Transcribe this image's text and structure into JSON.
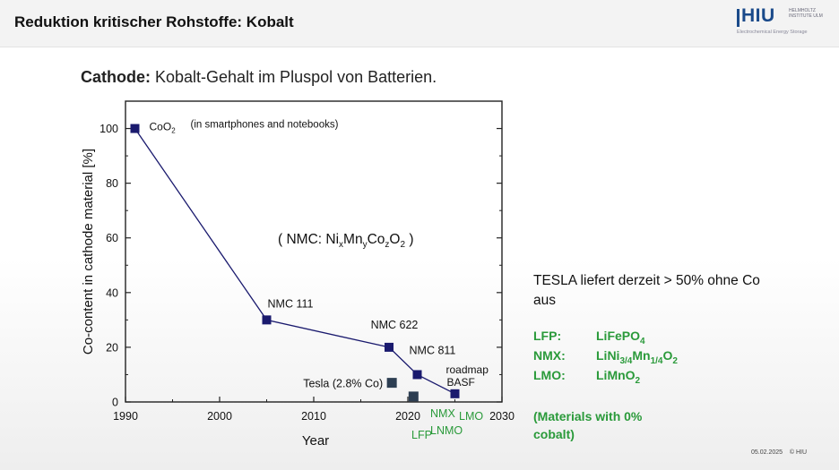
{
  "header": {
    "title": "Reduktion kritischer Rohstoffe: Kobalt",
    "logo": {
      "text": "HIU",
      "institute": "HELMHOLTZ INSTITUTE ULM",
      "subtitle": "Electrochemical Energy Storage"
    }
  },
  "subtitle": {
    "bold": "Cathode:",
    "text": " Kobalt-Gehalt im Pluspol von Batterien."
  },
  "chart_data": {
    "type": "line",
    "xlabel": "Year",
    "ylabel": "Co-content in cathode material [%]",
    "xlim": [
      1990,
      2030
    ],
    "ylim": [
      0,
      110
    ],
    "xticks": [
      1990,
      2000,
      2010,
      2020,
      2030
    ],
    "yticks": [
      0,
      20,
      40,
      60,
      80,
      100
    ],
    "grid": false,
    "inner_label": "( NMC: NixMnyCozO2 )",
    "series": [
      {
        "points": [
          {
            "x": 1991,
            "y": 100,
            "label": "CoO2",
            "note": "(in smartphones and notebooks)"
          },
          {
            "x": 2005,
            "y": 30,
            "label": "NMC 111"
          },
          {
            "x": 2018,
            "y": 20,
            "label": "NMC 622"
          },
          {
            "x": 2021,
            "y": 10,
            "label": "NMC 811"
          },
          {
            "x": 2025,
            "y": 3,
            "label": "roadmap BASF"
          }
        ],
        "color": "#1a1a6e"
      },
      {
        "points": [
          {
            "x": 2018.3,
            "y": 7,
            "label": "Tesla (2.8% Co)"
          },
          {
            "x": 2020.6,
            "y": 2
          }
        ],
        "color": "#2d3e52"
      }
    ],
    "annotations_green": [
      "NMX",
      "LMO",
      "LFP",
      "LNMO"
    ]
  },
  "right_panel": {
    "tesla_note": "TESLA liefert derzeit > 50% ohne Co aus",
    "materials": [
      {
        "abbr": "LFP:",
        "formula": "LiFePO4"
      },
      {
        "abbr": "NMX:",
        "formula": "LiNi3/4Mn1/4O2"
      },
      {
        "abbr": "LMO:",
        "formula": "LiMnO2"
      }
    ],
    "zero_cobalt_note": "(Materials with 0% cobalt)"
  },
  "footer": {
    "date": "05.02.2025",
    "copyright": "© HIU"
  },
  "colors": {
    "green": "#2a9a3a",
    "navy": "#1a1a6e",
    "logo_blue": "#1a4a8a"
  }
}
